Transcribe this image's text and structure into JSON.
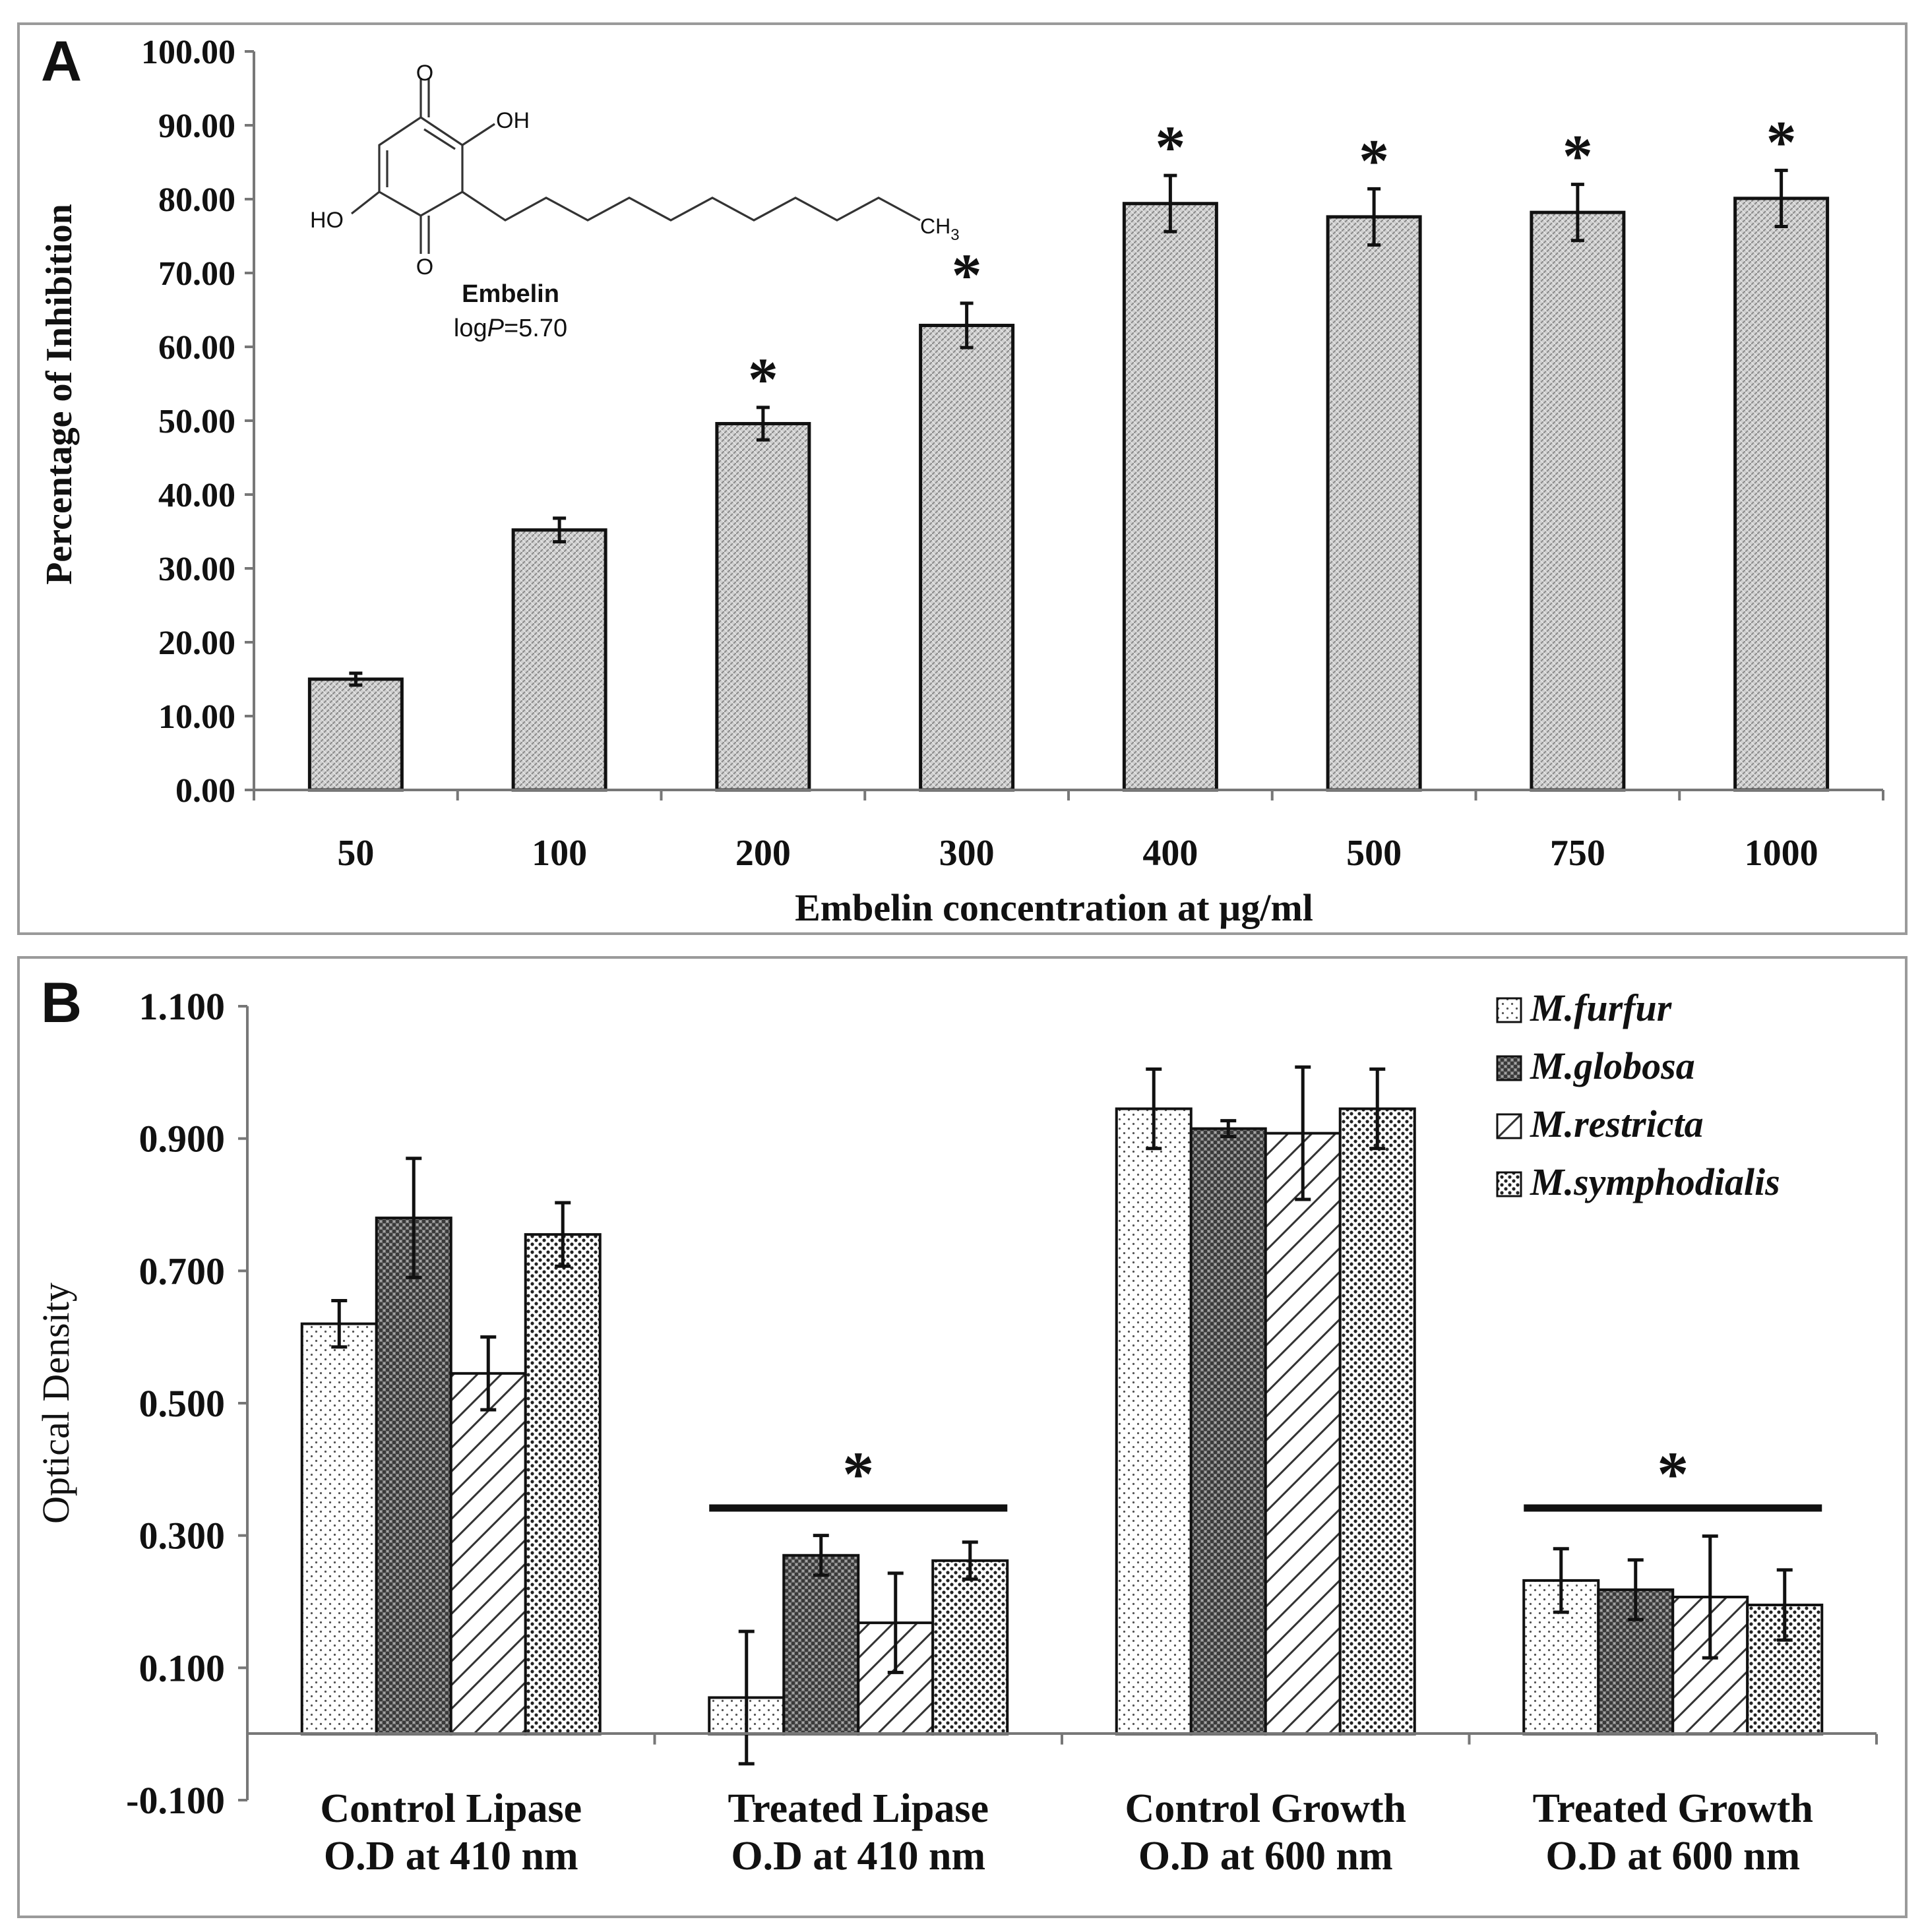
{
  "chart_data": [
    {
      "panel_label": "A",
      "type": "bar",
      "xlabel": "Embelin concentration at µg/ml",
      "ylabel": "Percentage of Inhibition",
      "ylim": [
        0,
        100
      ],
      "yticks": [
        "0.00",
        "10.00",
        "20.00",
        "30.00",
        "40.00",
        "50.00",
        "60.00",
        "70.00",
        "80.00",
        "90.00",
        "100.00"
      ],
      "categories": [
        "50",
        "100",
        "200",
        "300",
        "400",
        "500",
        "750",
        "1000"
      ],
      "values": [
        15.0,
        35.2,
        49.6,
        62.9,
        79.4,
        77.6,
        78.2,
        80.1
      ],
      "errors": [
        0.8,
        1.6,
        2.2,
        3.0,
        3.8,
        3.8,
        3.8,
        3.8
      ],
      "significance": [
        false,
        false,
        true,
        true,
        true,
        true,
        true,
        true
      ],
      "significance_marker": "*",
      "inset": {
        "compound_name": "Embelin",
        "logp_prefix": "log",
        "logp_symbol": "P",
        "logp_value": "=5.70",
        "atom_o_top": "O",
        "atom_o_bottom": "O",
        "atom_oh_right": "OH",
        "atom_ho_left": "HO",
        "atom_ch": "CH",
        "atom_ch_sub": "3"
      }
    },
    {
      "panel_label": "B",
      "type": "bar",
      "ylabel": "Optical Density",
      "ylim": [
        -0.1,
        1.1
      ],
      "yticks": [
        "-0.100",
        "0.100",
        "0.300",
        "0.500",
        "0.700",
        "0.900",
        "1.100"
      ],
      "categories": [
        [
          "Control Lipase",
          "O.D at 410 nm"
        ],
        [
          "Treated Lipase",
          "O.D at 410 nm"
        ],
        [
          "Control Growth",
          "O.D at 600 nm"
        ],
        [
          "Treated Growth",
          "O.D at 600 nm"
        ]
      ],
      "series": [
        {
          "name": "M.furfur",
          "values": [
            0.62,
            0.055,
            0.945,
            0.232
          ],
          "errors": [
            0.035,
            0.1,
            0.06,
            0.048
          ]
        },
        {
          "name": "M.globosa",
          "values": [
            0.78,
            0.27,
            0.915,
            0.218
          ],
          "errors": [
            0.09,
            0.03,
            0.012,
            0.045
          ]
        },
        {
          "name": "M.restricta",
          "values": [
            0.545,
            0.168,
            0.908,
            0.207
          ],
          "errors": [
            0.055,
            0.075,
            0.1,
            0.092
          ]
        },
        {
          "name": "M.symphodialis",
          "values": [
            0.755,
            0.262,
            0.945,
            0.195
          ],
          "errors": [
            0.048,
            0.028,
            0.06,
            0.053
          ]
        }
      ],
      "significance_groups": [
        1,
        3
      ],
      "significance_marker": "*",
      "legend_position": "top-right"
    }
  ]
}
